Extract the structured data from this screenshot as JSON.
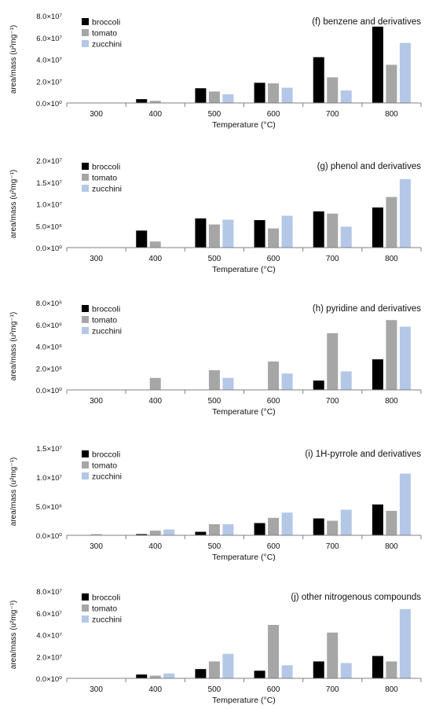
{
  "figure": {
    "legend_labels": [
      "broccoli",
      "tomato",
      "zucchini"
    ],
    "colors": [
      "#000000",
      "#a6a6a6",
      "#b4c7e7"
    ]
  },
  "chart_data": [
    {
      "type": "bar",
      "title": "(f) benzene and derivatives",
      "xlabel": "Temperature (°C)",
      "ylabel": "area/mass (u²mg⁻¹)",
      "categories": [
        "300",
        "400",
        "500",
        "600",
        "700",
        "800"
      ],
      "ylim": [
        0,
        80000000
      ],
      "yticks": [
        0,
        20000000,
        40000000,
        60000000,
        80000000
      ],
      "ytick_labels": [
        "0.0×10⁰",
        "2.0×10⁷",
        "4.0×10⁷",
        "6.0×10⁷",
        "8.0×10⁷"
      ],
      "legend_position": "top-left",
      "grid": false,
      "series": [
        {
          "name": "broccoli",
          "values": [
            0,
            3500000,
            13500000,
            18500000,
            42000000,
            70000000
          ]
        },
        {
          "name": "tomato",
          "values": [
            0,
            2000000,
            10500000,
            18000000,
            23500000,
            35000000
          ]
        },
        {
          "name": "zucchini",
          "values": [
            0,
            0,
            8000000,
            14000000,
            11500000,
            55000000
          ]
        }
      ]
    },
    {
      "type": "bar",
      "title": "(g) phenol and derivatives",
      "xlabel": "Temperature (°C)",
      "ylabel": "area/mass (u²mg⁻¹)",
      "categories": [
        "300",
        "400",
        "500",
        "600",
        "700",
        "800"
      ],
      "ylim": [
        0,
        20000000
      ],
      "yticks": [
        0,
        5000000,
        10000000,
        15000000,
        20000000
      ],
      "ytick_labels": [
        "0.0×10⁰",
        "5.0×10⁶",
        "1.0×10⁷",
        "1.5×10⁷",
        "2.0×10⁷"
      ],
      "legend_position": "top-left",
      "grid": false,
      "series": [
        {
          "name": "broccoli",
          "values": [
            0,
            3900000,
            6700000,
            6300000,
            8300000,
            9200000
          ]
        },
        {
          "name": "tomato",
          "values": [
            0,
            1400000,
            5300000,
            4400000,
            7800000,
            11600000
          ]
        },
        {
          "name": "zucchini",
          "values": [
            0,
            0,
            6400000,
            7300000,
            4800000,
            15700000
          ]
        }
      ]
    },
    {
      "type": "bar",
      "title": "(h) pyridine and derivatives",
      "xlabel": "Temperature (°C)",
      "ylabel": "area/mass (u²mg⁻¹)",
      "categories": [
        "300",
        "400",
        "500",
        "600",
        "700",
        "800"
      ],
      "ylim": [
        0,
        8000000
      ],
      "yticks": [
        0,
        2000000,
        4000000,
        6000000,
        8000000
      ],
      "ytick_labels": [
        "0.0×10⁰",
        "2.0×10⁶",
        "4.0×10⁶",
        "6.0×10⁶",
        "8.0×10⁶"
      ],
      "legend_position": "top-left",
      "grid": false,
      "series": [
        {
          "name": "broccoli",
          "values": [
            0,
            0,
            0,
            0,
            850000,
            2800000
          ]
        },
        {
          "name": "tomato",
          "values": [
            0,
            1100000,
            1800000,
            2600000,
            5200000,
            6400000
          ]
        },
        {
          "name": "zucchini",
          "values": [
            0,
            0,
            1100000,
            1500000,
            1700000,
            5800000
          ]
        }
      ]
    },
    {
      "type": "bar",
      "title": "(i) 1H-pyrrole and derivatives",
      "xlabel": "Temperature (°C)",
      "ylabel": "area/mass (u²mg⁻¹)",
      "categories": [
        "300",
        "400",
        "500",
        "600",
        "700",
        "800"
      ],
      "ylim": [
        0,
        15000000
      ],
      "yticks": [
        0,
        5000000,
        10000000,
        15000000
      ],
      "ytick_labels": [
        "0.0×10⁰",
        "5.0×10⁶",
        "1.0×10⁷",
        "1.5×10⁷"
      ],
      "legend_position": "top-left",
      "grid": false,
      "series": [
        {
          "name": "broccoli",
          "values": [
            0,
            200000,
            600000,
            2100000,
            2900000,
            5300000
          ]
        },
        {
          "name": "tomato",
          "values": [
            200000,
            800000,
            1900000,
            3000000,
            2500000,
            4200000
          ]
        },
        {
          "name": "zucchini",
          "values": [
            0,
            1000000,
            1900000,
            3900000,
            4400000,
            10600000
          ]
        }
      ]
    },
    {
      "type": "bar",
      "title": "(j) other nitrogenous compounds",
      "xlabel": "Temperature (°C)",
      "ylabel": "area/mass (u²mg⁻¹)",
      "categories": [
        "300",
        "400",
        "500",
        "600",
        "700",
        "800"
      ],
      "ylim": [
        0,
        80000000
      ],
      "yticks": [
        0,
        20000000,
        40000000,
        60000000,
        80000000
      ],
      "ytick_labels": [
        "0.0×10⁰",
        "2.0×10⁷",
        "4.0×10⁷",
        "6.0×10⁷",
        "8.0×10⁷"
      ],
      "legend_position": "top-left",
      "grid": false,
      "series": [
        {
          "name": "broccoli",
          "values": [
            0,
            3500000,
            8500000,
            7000000,
            15500000,
            20500000
          ]
        },
        {
          "name": "tomato",
          "values": [
            0,
            2500000,
            15500000,
            49000000,
            42000000,
            15500000
          ]
        },
        {
          "name": "zucchini",
          "values": [
            0,
            4500000,
            22500000,
            12000000,
            14000000,
            63500000
          ]
        }
      ]
    }
  ]
}
